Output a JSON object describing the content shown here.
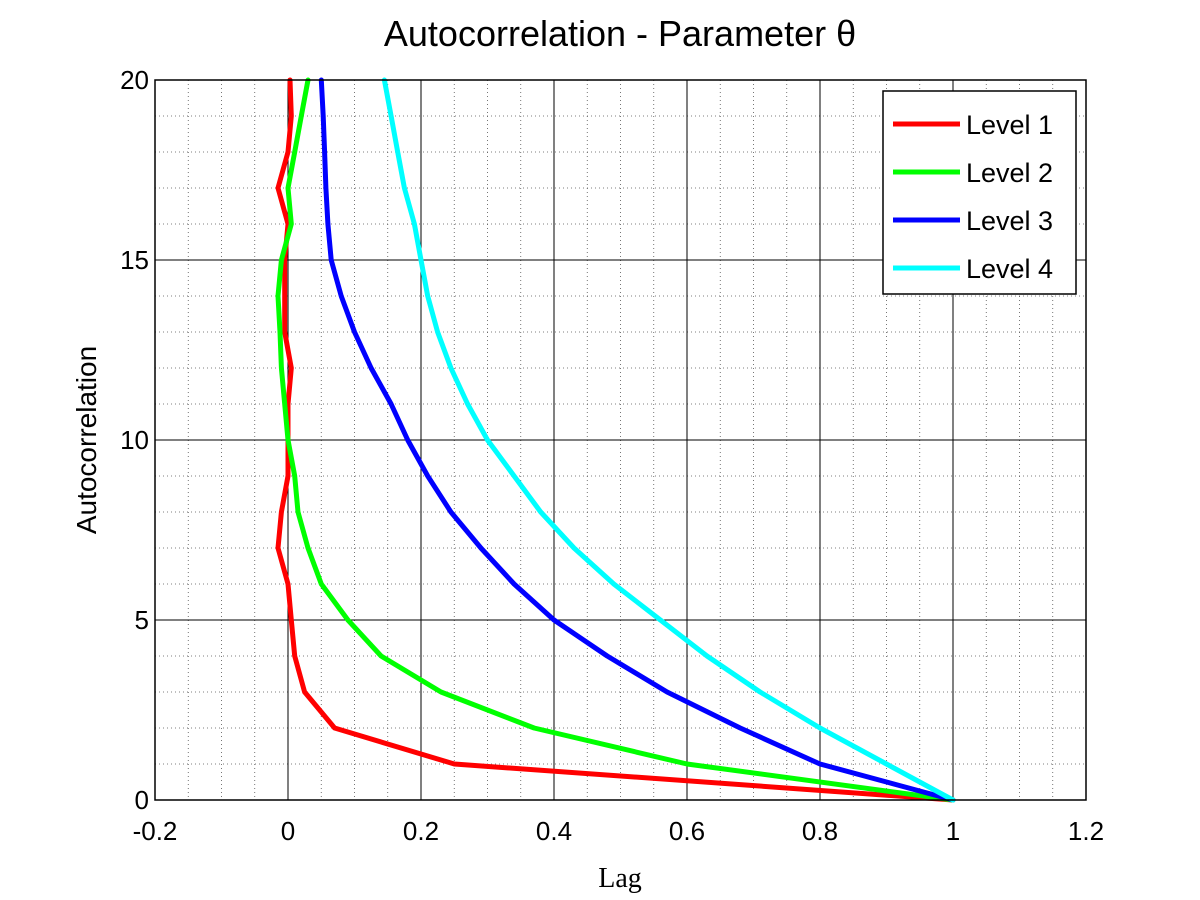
{
  "chart_data": {
    "type": "line",
    "title": "Autocorrelation - Parameter θ",
    "xlabel": "Lag",
    "ylabel": "Autocorrelation",
    "xlim": [
      -0.2,
      1.2
    ],
    "ylim": [
      0,
      20
    ],
    "xticks": [
      -0.2,
      0,
      0.2,
      0.4,
      0.6,
      0.8,
      1,
      1.2
    ],
    "xtick_labels": [
      "-0.2",
      "0",
      "0.2",
      "0.4",
      "0.6",
      "0.8",
      "1",
      "1.2"
    ],
    "yticks": [
      0,
      5,
      10,
      15,
      20
    ],
    "ytick_labels": [
      "0",
      "5",
      "10",
      "15",
      "20"
    ],
    "grid": true,
    "minor_grid": true,
    "legend_position": "top-right",
    "series": [
      {
        "name": "Level 1",
        "color": "#ff0000",
        "points": [
          [
            1.0,
            0
          ],
          [
            0.25,
            1
          ],
          [
            0.07,
            2
          ],
          [
            0.025,
            3
          ],
          [
            0.01,
            4
          ],
          [
            0.005,
            5
          ],
          [
            0.0,
            6
          ],
          [
            -0.015,
            7
          ],
          [
            -0.01,
            8
          ],
          [
            0.0,
            9
          ],
          [
            0.0,
            10
          ],
          [
            0.0,
            11
          ],
          [
            0.005,
            12
          ],
          [
            -0.005,
            13
          ],
          [
            -0.005,
            14
          ],
          [
            -0.005,
            15
          ],
          [
            0.0,
            16
          ],
          [
            -0.015,
            17
          ],
          [
            0.0,
            18
          ],
          [
            0.005,
            19
          ],
          [
            0.003,
            20
          ]
        ]
      },
      {
        "name": "Level 2",
        "color": "#00ff00",
        "points": [
          [
            1.0,
            0
          ],
          [
            0.6,
            1
          ],
          [
            0.37,
            2
          ],
          [
            0.23,
            3
          ],
          [
            0.14,
            4
          ],
          [
            0.09,
            5
          ],
          [
            0.05,
            6
          ],
          [
            0.03,
            7
          ],
          [
            0.015,
            8
          ],
          [
            0.01,
            9
          ],
          [
            0.0,
            10
          ],
          [
            -0.005,
            11
          ],
          [
            -0.01,
            12
          ],
          [
            -0.012,
            13
          ],
          [
            -0.015,
            14
          ],
          [
            -0.01,
            15
          ],
          [
            0.005,
            16
          ],
          [
            0.0,
            17
          ],
          [
            0.01,
            18
          ],
          [
            0.02,
            19
          ],
          [
            0.03,
            20
          ]
        ]
      },
      {
        "name": "Level 3",
        "color": "#0000ff",
        "points": [
          [
            1.0,
            0
          ],
          [
            0.8,
            1
          ],
          [
            0.68,
            2
          ],
          [
            0.57,
            3
          ],
          [
            0.48,
            4
          ],
          [
            0.4,
            5
          ],
          [
            0.34,
            6
          ],
          [
            0.29,
            7
          ],
          [
            0.245,
            8
          ],
          [
            0.21,
            9
          ],
          [
            0.18,
            10
          ],
          [
            0.155,
            11
          ],
          [
            0.125,
            12
          ],
          [
            0.1,
            13
          ],
          [
            0.08,
            14
          ],
          [
            0.065,
            15
          ],
          [
            0.06,
            16
          ],
          [
            0.057,
            17
          ],
          [
            0.055,
            18
          ],
          [
            0.053,
            19
          ],
          [
            0.05,
            20
          ]
        ]
      },
      {
        "name": "Level 4",
        "color": "#00ffff",
        "points": [
          [
            1.0,
            0
          ],
          [
            0.9,
            1
          ],
          [
            0.8,
            2
          ],
          [
            0.71,
            3
          ],
          [
            0.63,
            4
          ],
          [
            0.56,
            5
          ],
          [
            0.49,
            6
          ],
          [
            0.43,
            7
          ],
          [
            0.38,
            8
          ],
          [
            0.34,
            9
          ],
          [
            0.3,
            10
          ],
          [
            0.27,
            11
          ],
          [
            0.245,
            12
          ],
          [
            0.225,
            13
          ],
          [
            0.21,
            14
          ],
          [
            0.2,
            15
          ],
          [
            0.19,
            16
          ],
          [
            0.175,
            17
          ],
          [
            0.165,
            18
          ],
          [
            0.155,
            19
          ],
          [
            0.145,
            20
          ]
        ]
      }
    ]
  }
}
